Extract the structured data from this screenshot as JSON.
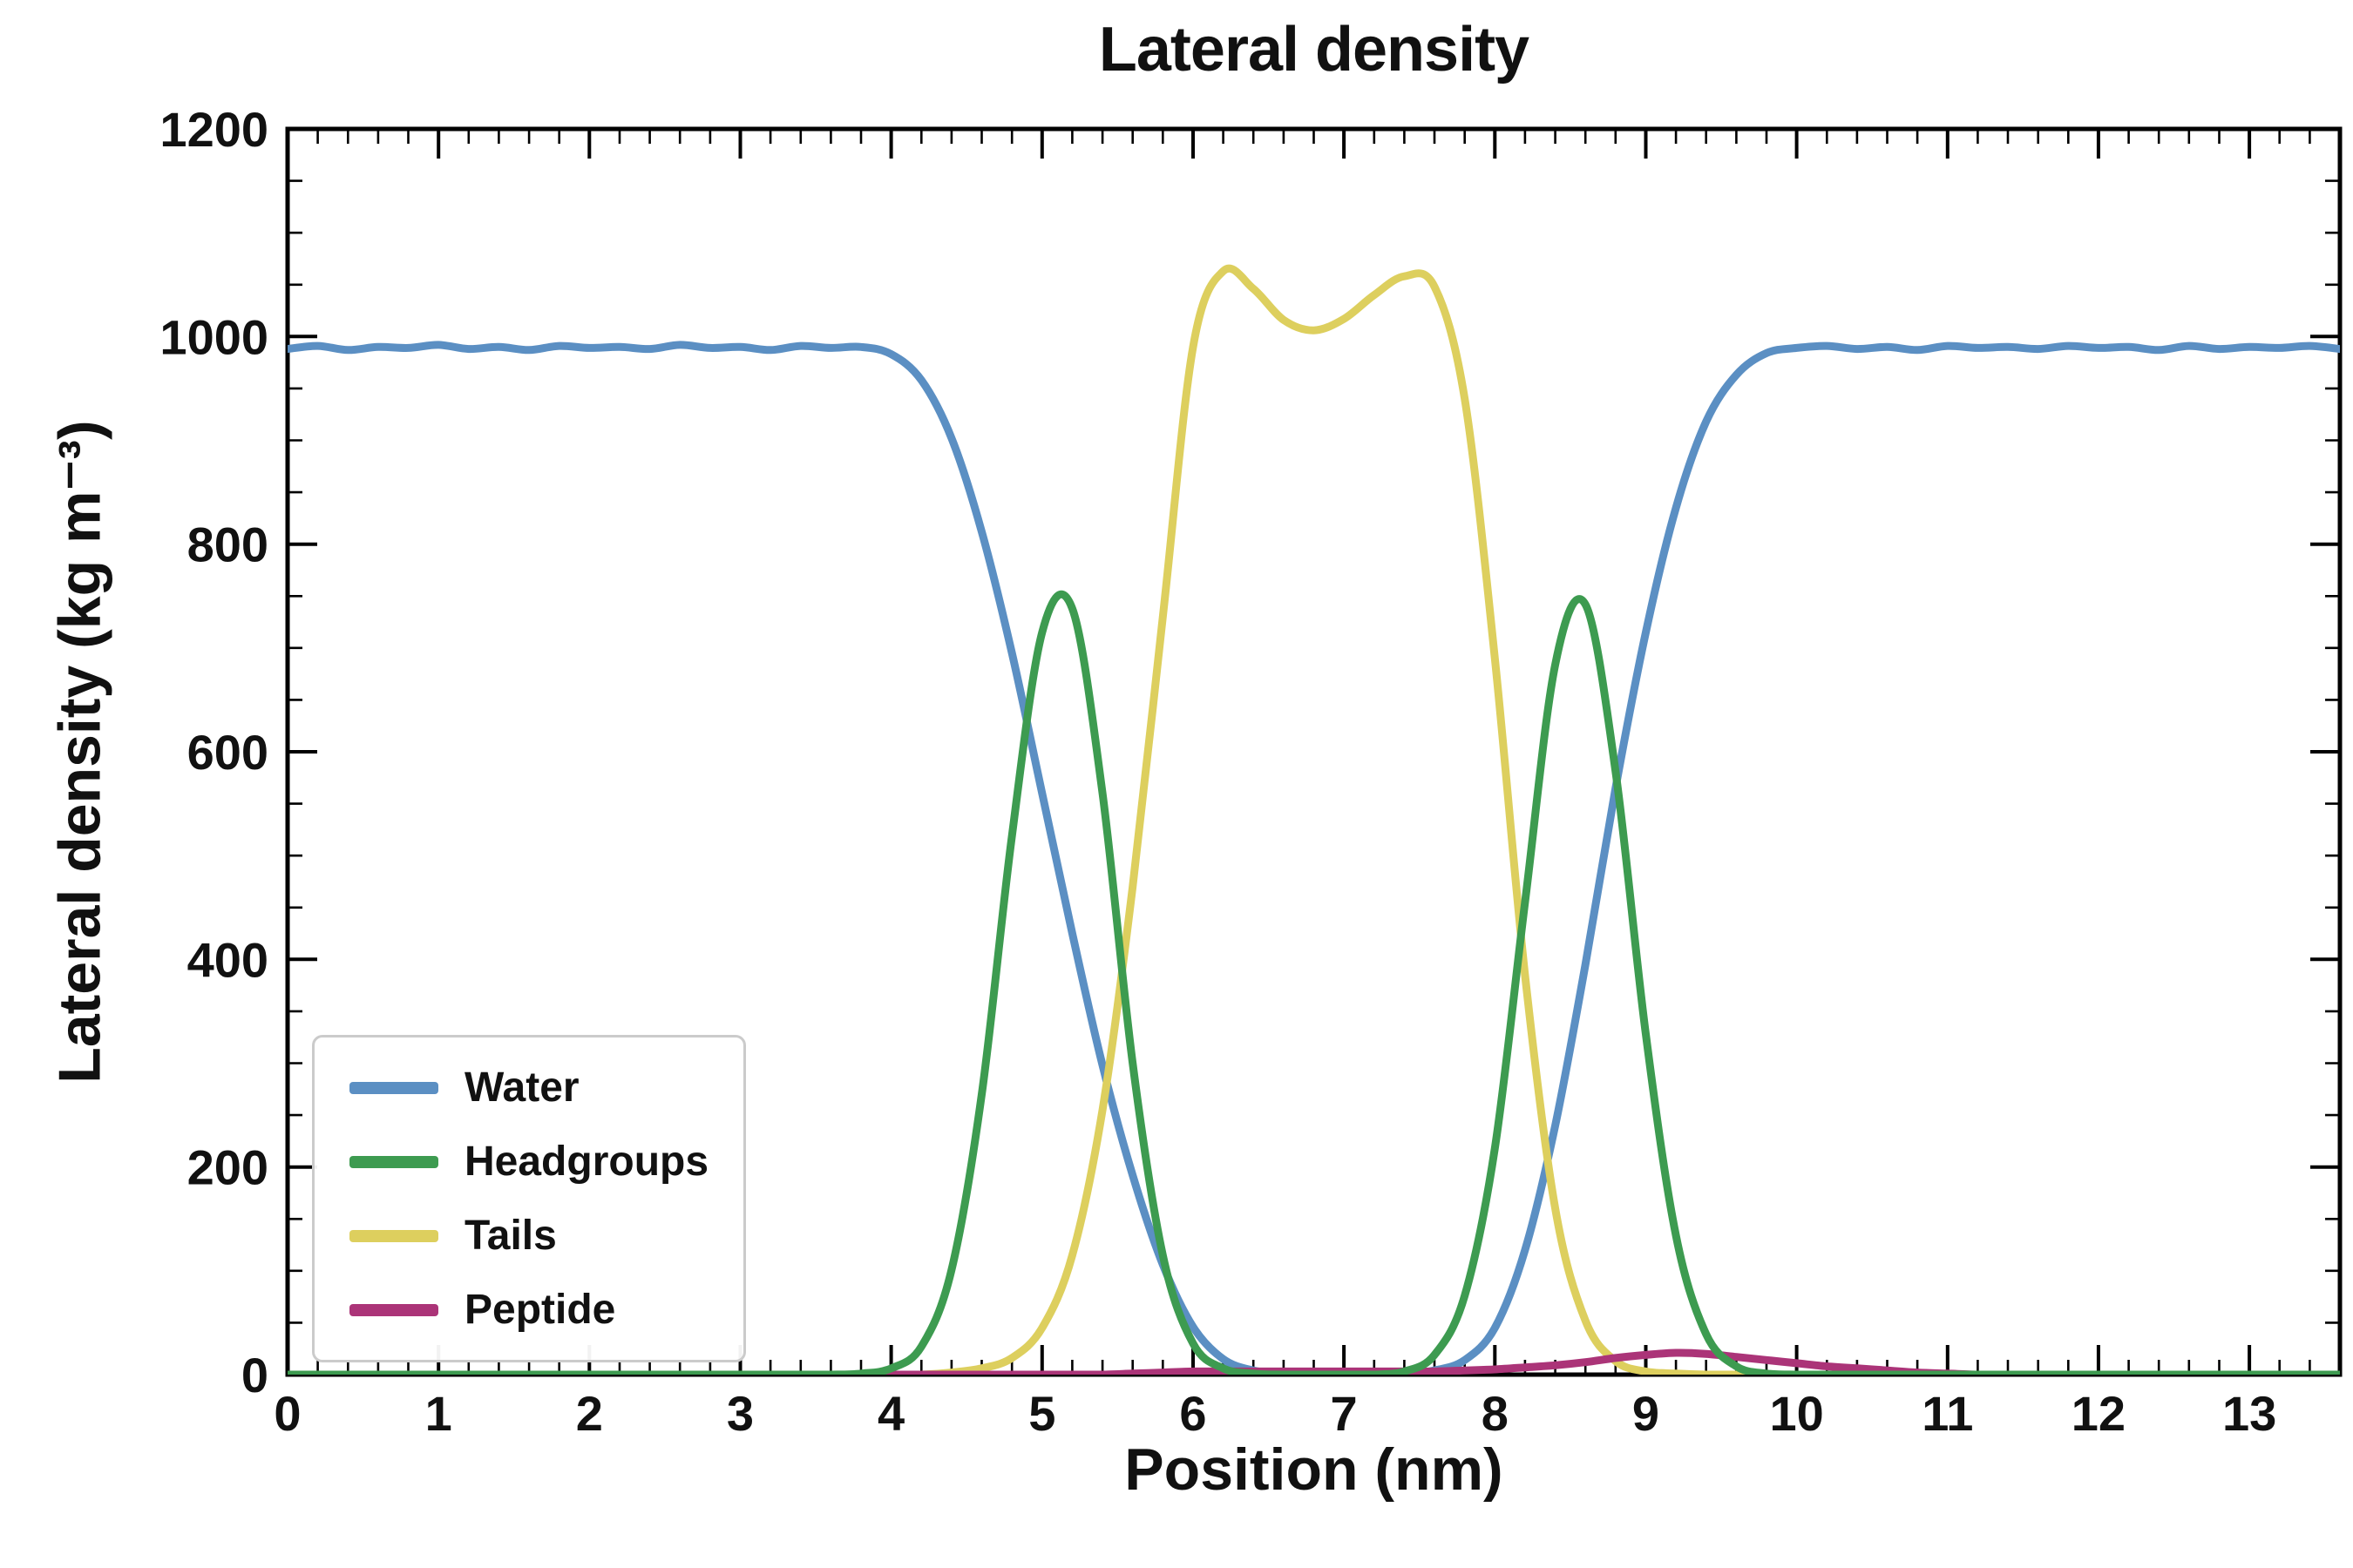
{
  "chart_data": {
    "type": "line",
    "title": "Lateral density",
    "xlabel": "Position (nm)",
    "ylabel": "Lateral density (kg m⁻³)",
    "xlim": [
      0,
      13.6
    ],
    "ylim": [
      0,
      1200
    ],
    "x_major_ticks": [
      0,
      1,
      2,
      3,
      4,
      5,
      6,
      7,
      8,
      9,
      10,
      11,
      12,
      13
    ],
    "x_minor_step": 0.2,
    "y_major_ticks": [
      0,
      200,
      400,
      600,
      800,
      1000,
      1200
    ],
    "y_minor_step": 50,
    "grid": false,
    "legend_position": "lower-left",
    "draw_order": [
      0,
      2,
      3,
      1
    ],
    "x": [
      0,
      0.2,
      0.4,
      0.6,
      0.8,
      1,
      1.2,
      1.4,
      1.6,
      1.8,
      2,
      2.2,
      2.4,
      2.6,
      2.8,
      3,
      3.2,
      3.4,
      3.6,
      3.8,
      4,
      4.2,
      4.4,
      4.6,
      4.8,
      5,
      5.2,
      5.4,
      5.6,
      5.8,
      6,
      6.2,
      6.4,
      6.6,
      6.8,
      7,
      7.2,
      7.4,
      7.6,
      7.8,
      8,
      8.2,
      8.4,
      8.6,
      8.8,
      9,
      9.2,
      9.4,
      9.6,
      9.8,
      10,
      10.2,
      10.4,
      10.6,
      10.8,
      11,
      11.2,
      11.4,
      11.6,
      11.8,
      12,
      12.2,
      12.4,
      12.6,
      12.8,
      13,
      13.2,
      13.4,
      13.6
    ],
    "series": [
      {
        "name": "Water",
        "color": "#5b8fc3",
        "values": [
          988,
          991,
          987,
          990,
          989,
          992,
          988,
          990,
          987,
          991,
          989,
          990,
          988,
          992,
          989,
          990,
          987,
          991,
          989,
          990,
          983,
          958,
          902,
          812,
          695,
          560,
          425,
          298,
          192,
          106,
          46,
          15,
          4,
          1,
          0,
          0,
          0,
          1,
          4,
          14,
          45,
          120,
          240,
          395,
          565,
          715,
          835,
          918,
          963,
          984,
          989,
          991,
          988,
          990,
          987,
          991,
          989,
          990,
          988,
          991,
          989,
          990,
          987,
          991,
          988,
          990,
          989,
          991,
          988
        ]
      },
      {
        "name": "Headgroups",
        "color": "#3d9b50",
        "values": [
          0,
          0,
          0,
          0,
          0,
          0,
          0,
          0,
          0,
          0,
          0,
          0,
          0,
          0,
          0,
          0,
          0,
          0,
          0,
          1,
          6,
          27,
          101,
          270,
          519,
          715,
          738,
          560,
          300,
          115,
          30,
          6,
          1,
          0,
          0,
          0,
          0,
          3,
          19,
          76,
          218,
          455,
          684,
          742,
          581,
          328,
          134,
          39,
          8,
          1,
          0,
          0,
          0,
          0,
          0,
          0,
          0,
          0,
          0,
          0,
          0,
          0,
          0,
          0,
          0,
          0,
          0,
          0,
          0
        ]
      },
      {
        "name": "Tails",
        "color": "#ddcf5e",
        "values": [
          0,
          0,
          0,
          0,
          0,
          0,
          0,
          0,
          0,
          0,
          0,
          0,
          0,
          0,
          0,
          0,
          0,
          0,
          0,
          0,
          0,
          0,
          2,
          6,
          16,
          45,
          115,
          255,
          470,
          730,
          990,
          1063,
          1046,
          1016,
          1006,
          1017,
          1040,
          1058,
          1048,
          940,
          690,
          385,
          160,
          52,
          13,
          3,
          1,
          0,
          0,
          0,
          0,
          0,
          0,
          0,
          0,
          0,
          0,
          0,
          0,
          0,
          0,
          0,
          0,
          0,
          0,
          0,
          0,
          0,
          0
        ]
      },
      {
        "name": "Peptide",
        "color": "#ab3478",
        "values": [
          0,
          0,
          0,
          0,
          0,
          0,
          0,
          0,
          0,
          0,
          0,
          0,
          0,
          0,
          0,
          0,
          0,
          0,
          0,
          0,
          0,
          0,
          0,
          0,
          0,
          0,
          0,
          0,
          1,
          2,
          3,
          3,
          3,
          3,
          3,
          3,
          3,
          3,
          3,
          4,
          5,
          7,
          9,
          12,
          16,
          19,
          21,
          20,
          17,
          14,
          11,
          8,
          6,
          4,
          2,
          1,
          0,
          0,
          0,
          0,
          0,
          0,
          0,
          0,
          0,
          0,
          0,
          0,
          0
        ]
      }
    ]
  }
}
